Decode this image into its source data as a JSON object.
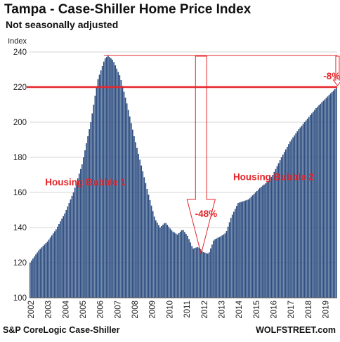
{
  "title": "Tampa - Case-Shiller Home Price Index",
  "subtitle": "Not seasonally adjusted",
  "source": "S&P CoreLogic Case-Shiller",
  "brand": "WOLFSTREET.com",
  "colors": {
    "bar": "#2e4f82",
    "accent": "#e4262a",
    "grid": "#d5d5d5"
  },
  "chart_data": {
    "type": "bar",
    "ylabel": "Index",
    "ylim": [
      100,
      240
    ],
    "yticks": [
      100,
      120,
      140,
      160,
      180,
      200,
      220,
      240
    ],
    "x_years": [
      "2002",
      "2003",
      "2004",
      "2005",
      "2006",
      "2007",
      "2008",
      "2009",
      "2010",
      "2011",
      "2012",
      "2013",
      "2014",
      "2015",
      "2016",
      "2017",
      "2018",
      "2019"
    ],
    "x_start_year": 2002,
    "x_end_year": 2019.75,
    "grid": true,
    "anchors": [
      [
        2002.0,
        120
      ],
      [
        2002.5,
        127
      ],
      [
        2003.0,
        132
      ],
      [
        2003.5,
        139
      ],
      [
        2004.0,
        148
      ],
      [
        2004.5,
        160
      ],
      [
        2005.0,
        176
      ],
      [
        2005.5,
        200
      ],
      [
        2005.9,
        224
      ],
      [
        2006.3,
        236
      ],
      [
        2006.5,
        238
      ],
      [
        2006.8,
        235
      ],
      [
        2007.2,
        226
      ],
      [
        2007.6,
        210
      ],
      [
        2008.0,
        192
      ],
      [
        2008.5,
        172
      ],
      [
        2008.8,
        160
      ],
      [
        2009.2,
        145
      ],
      [
        2009.5,
        140
      ],
      [
        2009.8,
        143
      ],
      [
        2010.2,
        138
      ],
      [
        2010.5,
        136
      ],
      [
        2010.8,
        139
      ],
      [
        2011.1,
        135
      ],
      [
        2011.4,
        128
      ],
      [
        2011.7,
        129
      ],
      [
        2012.0,
        126
      ],
      [
        2012.3,
        125
      ],
      [
        2012.6,
        133
      ],
      [
        2013.0,
        135
      ],
      [
        2013.3,
        137
      ],
      [
        2013.6,
        146
      ],
      [
        2014.0,
        154
      ],
      [
        2014.3,
        155
      ],
      [
        2014.6,
        156
      ],
      [
        2014.9,
        159
      ],
      [
        2015.3,
        163
      ],
      [
        2015.7,
        166
      ],
      [
        2016.0,
        170
      ],
      [
        2016.5,
        180
      ],
      [
        2017.0,
        189
      ],
      [
        2017.5,
        196
      ],
      [
        2018.0,
        202
      ],
      [
        2018.5,
        208
      ],
      [
        2019.0,
        213
      ],
      [
        2019.4,
        217
      ],
      [
        2019.7,
        220
      ]
    ],
    "reference_line": {
      "value": 220
    },
    "peak_value": 238,
    "annotations": [
      {
        "id": "bubble1",
        "text": "Housing Bubble 1",
        "year": 2002.9,
        "y": 164
      },
      {
        "id": "bubble2",
        "text": "Housing Bubble 2",
        "year": 2013.75,
        "y": 167
      },
      {
        "id": "drop48",
        "text": "-48%",
        "year": 2011.55,
        "y": 146
      },
      {
        "id": "drop8",
        "text": "-8%",
        "year": 2018.95,
        "y": 224.5
      }
    ]
  }
}
